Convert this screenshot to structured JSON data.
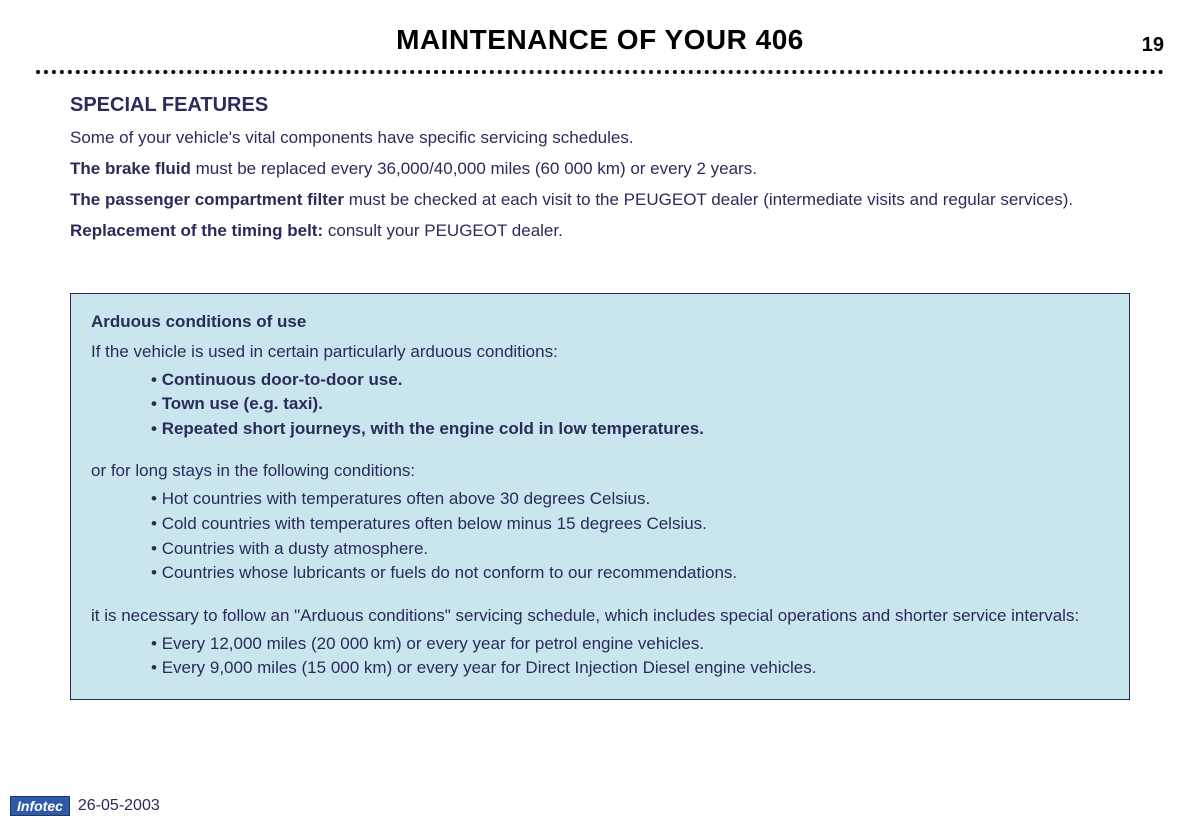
{
  "page_number": "19",
  "title": "MAINTENANCE OF YOUR 406",
  "section_heading": "SPECIAL FEATURES",
  "intro": "Some of your vehicle's vital components have specific servicing schedules.",
  "brake_fluid_label": "The brake fluid",
  "brake_fluid_text": " must be replaced every 36,000/40,000 miles (60 000 km) or every 2 years.",
  "filter_label": "The passenger compartment filter",
  "filter_text": " must be checked at each visit to the PEUGEOT dealer (intermediate visits and regular services).",
  "timing_label": "Replacement of the timing belt:",
  "timing_text": " consult your PEUGEOT dealer.",
  "box": {
    "title": "Arduous conditions of use",
    "lead1": "If the vehicle is used in certain particularly arduous conditions:",
    "list1": [
      "Continuous door-to-door use.",
      "Town use (e.g. taxi).",
      "Repeated short journeys, with the engine cold in low temperatures."
    ],
    "lead2": "or for long stays in the following conditions:",
    "list2": [
      "Hot countries with temperatures often above 30 degrees Celsius.",
      "Cold countries with temperatures often below minus 15 degrees Celsius.",
      "Countries with a dusty atmosphere.",
      "Countries whose lubricants or fuels do not conform to our recommendations."
    ],
    "lead3": "it is necessary to follow an \"Arduous conditions\" servicing schedule, which includes special operations and shorter service intervals:",
    "list3": [
      "Every 12,000 miles (20 000 km) or every year for petrol engine vehicles.",
      "Every 9,000 miles (15 000 km) or every year for Direct Injection Diesel engine vehicles."
    ]
  },
  "footer": {
    "badge": "Infotec",
    "date": "26-05-2003"
  },
  "colors": {
    "text": "#2b2b5a",
    "box_bg": "#c9e5ee",
    "badge_bg": "#2e5aa8"
  }
}
